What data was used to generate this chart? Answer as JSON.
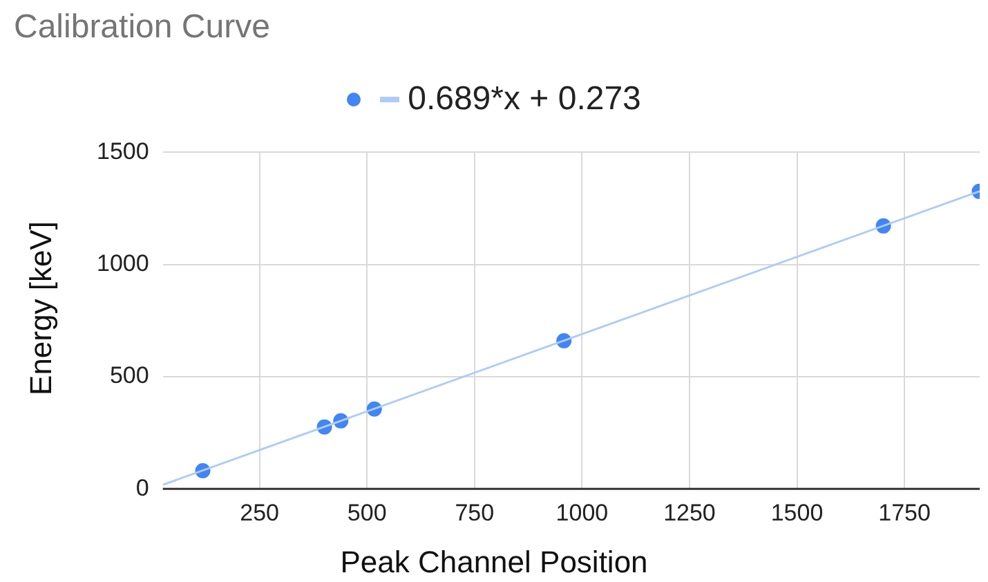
{
  "chart_data": {
    "type": "scatter",
    "title": "Calibration Curve",
    "xlabel": "Peak Channel Position",
    "ylabel": "Energy [keV]",
    "xlim": [
      25,
      1925
    ],
    "xticks": [
      250,
      500,
      750,
      1000,
      1250,
      1500,
      1750
    ],
    "ylim": [
      0,
      1500
    ],
    "yticks": [
      0,
      500,
      1000,
      1500
    ],
    "grid": true,
    "legend": "top",
    "marker": "circle",
    "series": [
      {
        "color": "#4285f4",
        "x": [
          118,
          401,
          439,
          517,
          958,
          1701,
          1924
        ],
        "values": [
          81,
          276,
          303,
          356,
          660,
          1172,
          1326
        ]
      },
      {
        "name": "0.689*x + 0.273",
        "type": "line",
        "color": "#aecbfa",
        "marker": "none",
        "x": [
          25,
          1925
        ],
        "values": [
          18,
          1327
        ]
      }
    ]
  }
}
